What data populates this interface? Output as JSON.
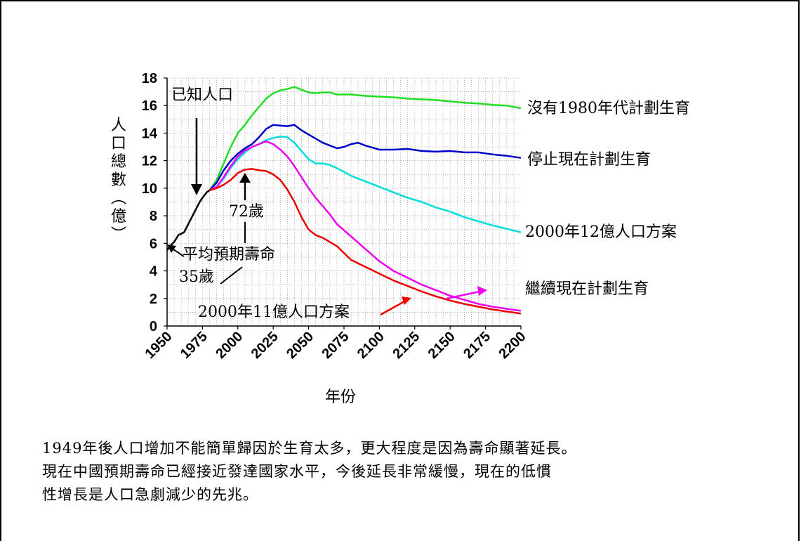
{
  "chart_data": {
    "type": "line",
    "xlabel": "年份",
    "ylabel": "人口總數（億）",
    "xlim": [
      1950,
      2200
    ],
    "ylim": [
      0,
      18
    ],
    "x_ticks": [
      "1950",
      "1975",
      "2000",
      "2025",
      "2050",
      "2075",
      "2100",
      "2125",
      "2150",
      "2175",
      "2200"
    ],
    "y_ticks": [
      "0",
      "2",
      "4",
      "6",
      "8",
      "10",
      "12",
      "14",
      "16",
      "18"
    ],
    "grid": true,
    "series": [
      {
        "name": "已知人口",
        "color": "#000000",
        "points": [
          [
            1950,
            5.5
          ],
          [
            1953,
            5.9
          ],
          [
            1955,
            6.1
          ],
          [
            1958,
            6.6
          ],
          [
            1960,
            6.7
          ],
          [
            1962,
            6.8
          ],
          [
            1965,
            7.4
          ],
          [
            1968,
            8.0
          ],
          [
            1970,
            8.4
          ],
          [
            1973,
            9.0
          ],
          [
            1975,
            9.3
          ],
          [
            1978,
            9.7
          ],
          [
            1980,
            9.85
          ]
        ]
      },
      {
        "name": "沒有1980年代計劃生育",
        "color": "#22dd22",
        "points": [
          [
            1980,
            9.85
          ],
          [
            1985,
            10.6
          ],
          [
            1990,
            11.8
          ],
          [
            1995,
            13.0
          ],
          [
            2000,
            14.0
          ],
          [
            2005,
            14.6
          ],
          [
            2010,
            15.3
          ],
          [
            2015,
            15.9
          ],
          [
            2020,
            16.5
          ],
          [
            2025,
            16.9
          ],
          [
            2030,
            17.1
          ],
          [
            2035,
            17.2
          ],
          [
            2040,
            17.35
          ],
          [
            2045,
            17.15
          ],
          [
            2050,
            16.95
          ],
          [
            2055,
            16.9
          ],
          [
            2060,
            16.95
          ],
          [
            2065,
            16.95
          ],
          [
            2070,
            16.8
          ],
          [
            2080,
            16.8
          ],
          [
            2090,
            16.7
          ],
          [
            2100,
            16.65
          ],
          [
            2110,
            16.6
          ],
          [
            2120,
            16.5
          ],
          [
            2130,
            16.45
          ],
          [
            2140,
            16.4
          ],
          [
            2150,
            16.3
          ],
          [
            2160,
            16.2
          ],
          [
            2170,
            16.15
          ],
          [
            2180,
            16.05
          ],
          [
            2190,
            16.0
          ],
          [
            2200,
            15.8
          ]
        ]
      },
      {
        "name": "停止現在計劃生育",
        "color": "#0000cc",
        "points": [
          [
            1980,
            9.85
          ],
          [
            1985,
            10.4
          ],
          [
            1990,
            11.3
          ],
          [
            1995,
            12.0
          ],
          [
            2000,
            12.5
          ],
          [
            2005,
            12.9
          ],
          [
            2010,
            13.2
          ],
          [
            2015,
            13.7
          ],
          [
            2020,
            14.3
          ],
          [
            2025,
            14.6
          ],
          [
            2030,
            14.55
          ],
          [
            2035,
            14.5
          ],
          [
            2040,
            14.6
          ],
          [
            2045,
            14.2
          ],
          [
            2050,
            13.9
          ],
          [
            2055,
            13.6
          ],
          [
            2060,
            13.3
          ],
          [
            2065,
            13.1
          ],
          [
            2070,
            12.9
          ],
          [
            2075,
            13.0
          ],
          [
            2080,
            13.2
          ],
          [
            2085,
            13.3
          ],
          [
            2090,
            13.1
          ],
          [
            2100,
            12.8
          ],
          [
            2110,
            12.8
          ],
          [
            2120,
            12.85
          ],
          [
            2130,
            12.7
          ],
          [
            2140,
            12.65
          ],
          [
            2150,
            12.7
          ],
          [
            2160,
            12.6
          ],
          [
            2170,
            12.6
          ],
          [
            2180,
            12.45
          ],
          [
            2190,
            12.35
          ],
          [
            2200,
            12.2
          ]
        ]
      },
      {
        "name": "2000年12億人口方案",
        "color": "#00dddd",
        "points": [
          [
            1980,
            9.85
          ],
          [
            1985,
            10.1
          ],
          [
            1990,
            10.7
          ],
          [
            1995,
            11.5
          ],
          [
            2000,
            12.1
          ],
          [
            2005,
            12.6
          ],
          [
            2010,
            13.0
          ],
          [
            2015,
            13.2
          ],
          [
            2020,
            13.5
          ],
          [
            2025,
            13.65
          ],
          [
            2030,
            13.75
          ],
          [
            2035,
            13.7
          ],
          [
            2040,
            13.3
          ],
          [
            2045,
            12.7
          ],
          [
            2050,
            12.1
          ],
          [
            2055,
            11.8
          ],
          [
            2060,
            11.8
          ],
          [
            2065,
            11.7
          ],
          [
            2070,
            11.45
          ],
          [
            2075,
            11.2
          ],
          [
            2080,
            10.9
          ],
          [
            2090,
            10.5
          ],
          [
            2100,
            10.1
          ],
          [
            2110,
            9.7
          ],
          [
            2120,
            9.3
          ],
          [
            2130,
            9.0
          ],
          [
            2140,
            8.6
          ],
          [
            2150,
            8.3
          ],
          [
            2160,
            7.9
          ],
          [
            2170,
            7.6
          ],
          [
            2180,
            7.3
          ],
          [
            2190,
            7.05
          ],
          [
            2200,
            6.8
          ]
        ]
      },
      {
        "name": "繼續現在計劃生育",
        "color": "#ee00ee",
        "points": [
          [
            1980,
            9.85
          ],
          [
            1985,
            10.1
          ],
          [
            1990,
            10.8
          ],
          [
            1995,
            11.6
          ],
          [
            2000,
            12.3
          ],
          [
            2005,
            12.75
          ],
          [
            2010,
            13.0
          ],
          [
            2015,
            13.2
          ],
          [
            2020,
            13.4
          ],
          [
            2025,
            13.2
          ],
          [
            2030,
            12.8
          ],
          [
            2035,
            12.3
          ],
          [
            2040,
            11.6
          ],
          [
            2045,
            10.8
          ],
          [
            2050,
            10.0
          ],
          [
            2055,
            9.3
          ],
          [
            2060,
            8.7
          ],
          [
            2065,
            8.1
          ],
          [
            2070,
            7.4
          ],
          [
            2080,
            6.5
          ],
          [
            2090,
            5.6
          ],
          [
            2100,
            4.7
          ],
          [
            2110,
            4.0
          ],
          [
            2120,
            3.5
          ],
          [
            2130,
            3.0
          ],
          [
            2140,
            2.6
          ],
          [
            2150,
            2.2
          ],
          [
            2160,
            1.9
          ],
          [
            2170,
            1.6
          ],
          [
            2180,
            1.4
          ],
          [
            2190,
            1.25
          ],
          [
            2200,
            1.1
          ]
        ]
      },
      {
        "name": "2000年11億人口方案",
        "color": "#ee0000",
        "points": [
          [
            1980,
            9.85
          ],
          [
            1985,
            10.0
          ],
          [
            1990,
            10.25
          ],
          [
            1995,
            10.6
          ],
          [
            2000,
            11.1
          ],
          [
            2005,
            11.35
          ],
          [
            2010,
            11.4
          ],
          [
            2015,
            11.3
          ],
          [
            2020,
            11.25
          ],
          [
            2025,
            11.0
          ],
          [
            2030,
            10.6
          ],
          [
            2035,
            9.9
          ],
          [
            2040,
            9.0
          ],
          [
            2045,
            7.9
          ],
          [
            2050,
            7.0
          ],
          [
            2055,
            6.6
          ],
          [
            2060,
            6.4
          ],
          [
            2065,
            6.1
          ],
          [
            2070,
            5.8
          ],
          [
            2075,
            5.3
          ],
          [
            2080,
            4.8
          ],
          [
            2090,
            4.3
          ],
          [
            2100,
            3.8
          ],
          [
            2110,
            3.3
          ],
          [
            2120,
            2.9
          ],
          [
            2130,
            2.5
          ],
          [
            2140,
            2.15
          ],
          [
            2150,
            1.85
          ],
          [
            2160,
            1.6
          ],
          [
            2170,
            1.4
          ],
          [
            2180,
            1.2
          ],
          [
            2190,
            1.05
          ],
          [
            2200,
            0.9
          ]
        ]
      }
    ],
    "annotations": {
      "known_population": "已知人口",
      "life_expectancy_72": "72歲",
      "avg_life_expectancy": "平均預期壽命",
      "life_expectancy_35": "35歲"
    }
  },
  "caption": {
    "line1": "1949年後人口增加不能簡單歸因於生育太多，更大程度是因為壽命顯著延長。",
    "line2": "現在中國預期壽命已經接近發達國家水平，今後延長非常緩慢，現在的低慣",
    "line3": "性增長是人口急劇減少的先兆。"
  }
}
